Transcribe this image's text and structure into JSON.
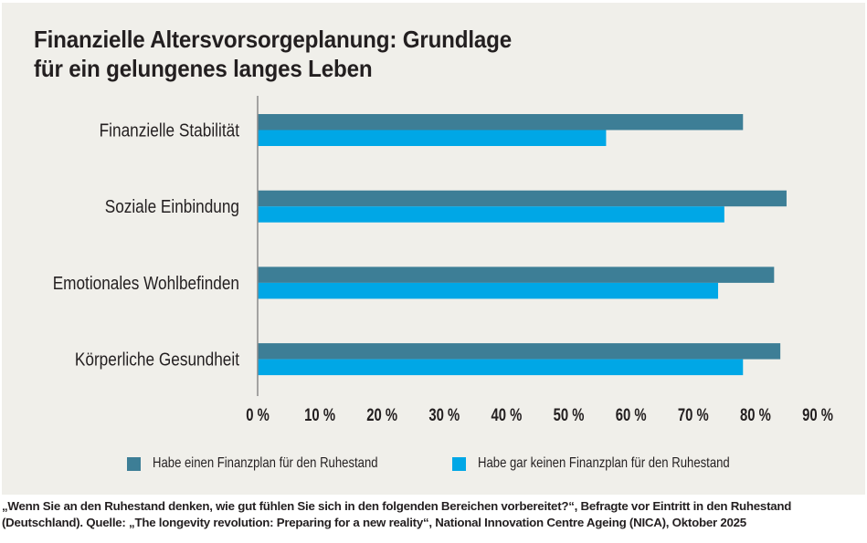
{
  "title": {
    "line1": "Finanzielle Altersvorsorgeplanung: Grundlage",
    "line2": "für ein gelungenes langes Leben"
  },
  "colors": {
    "background": "#f0efea",
    "series_with_plan": "#3d7e96",
    "series_without_plan": "#00a7e6",
    "text": "#231f20",
    "axis": "#8a8a8a"
  },
  "chart_data": {
    "type": "bar",
    "orientation": "horizontal",
    "title": "Finanzielle Altersvorsorgeplanung: Grundlage für ein gelungenes langes Leben",
    "categories": [
      "Finanzielle Stabilität",
      "Soziale Einbindung",
      "Emotionales Wohlbefinden",
      "Körperliche Gesundheit"
    ],
    "series": [
      {
        "name": "Habe einen Finanzplan für den Ruhestand",
        "color": "#3d7e96",
        "values": [
          78,
          85,
          83,
          84
        ]
      },
      {
        "name": "Habe gar keinen Finanzplan für den Ruhestand",
        "color": "#00a7e6",
        "values": [
          56,
          75,
          74,
          78
        ]
      }
    ],
    "xlabel": "",
    "ylabel": "",
    "xlim": [
      0,
      90
    ],
    "x_ticks": [
      0,
      10,
      20,
      30,
      40,
      50,
      60,
      70,
      80,
      90
    ],
    "x_tick_labels": [
      "0 %",
      "10 %",
      "20 %",
      "30 %",
      "40 %",
      "50 %",
      "60 %",
      "70 %",
      "80 %",
      "90 %"
    ],
    "unit": "%",
    "grid": false,
    "legend_position": "bottom"
  },
  "legend": [
    {
      "label": "Habe einen Finanzplan für den Ruhestand"
    },
    {
      "label": "Habe gar keinen Finanzplan für den Ruhestand"
    }
  ],
  "footnote": {
    "line1": "„Wenn Sie an den Ruhestand denken, wie gut fühlen Sie sich in den folgenden Bereichen vorbereitet?“, Befragte vor Eintritt in den Ruhestand",
    "line2": "(Deutschland). Quelle: „The longevity revolution: Preparing for a new reality“, National Innovation Centre Ageing (NICA), Oktober 2025"
  }
}
